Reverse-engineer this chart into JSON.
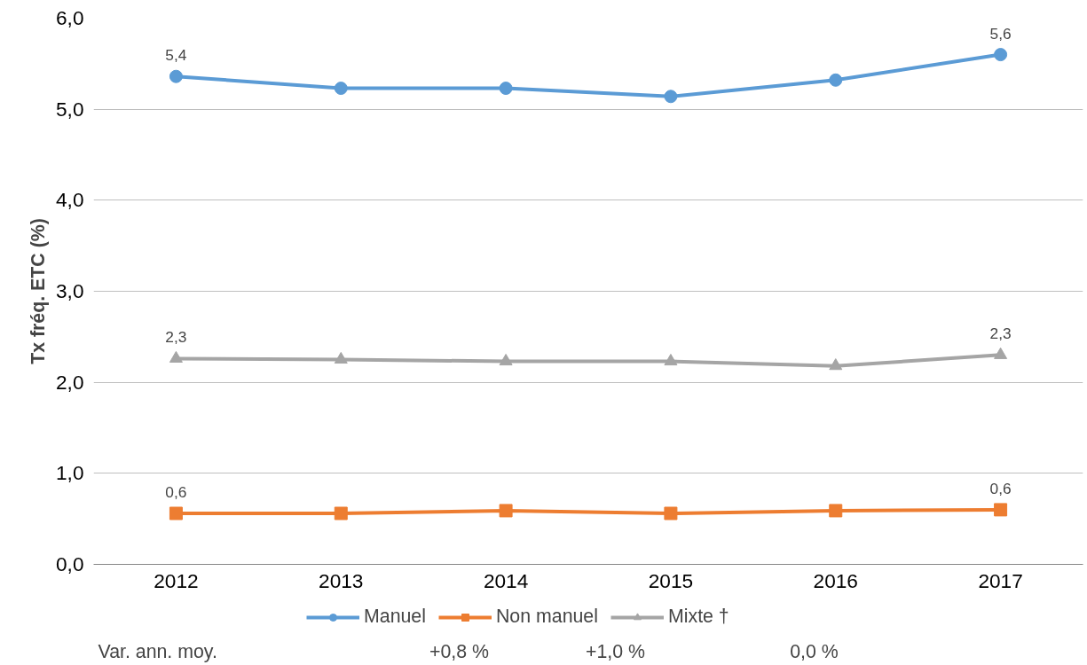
{
  "chart_data": {
    "type": "line",
    "ylabel": "Tx fréq. ETC (%)",
    "categories": [
      "2012",
      "2013",
      "2014",
      "2015",
      "2016",
      "2017"
    ],
    "series": [
      {
        "name": "Manuel",
        "color": "#5b9bd5",
        "marker": "circle",
        "values": [
          5.36,
          5.23,
          5.23,
          5.14,
          5.32,
          5.6
        ],
        "value_labels": [
          "5,4",
          null,
          null,
          null,
          null,
          "5,6"
        ]
      },
      {
        "name": "Non manuel",
        "color": "#ed7d31",
        "marker": "square",
        "values": [
          0.56,
          0.56,
          0.59,
          0.56,
          0.59,
          0.6
        ],
        "value_labels": [
          "0,6",
          null,
          null,
          null,
          null,
          "0,6"
        ]
      },
      {
        "name": "Mixte †",
        "color": "#a5a5a5",
        "marker": "triangle",
        "values": [
          2.26,
          2.25,
          2.23,
          2.23,
          2.18,
          2.3
        ],
        "value_labels": [
          "2,3",
          null,
          null,
          null,
          null,
          "2,3"
        ]
      }
    ],
    "ylim": [
      0,
      6
    ],
    "yticks": [
      {
        "value": 0,
        "label": "0,0"
      },
      {
        "value": 1,
        "label": "1,0"
      },
      {
        "value": 2,
        "label": "2,0"
      },
      {
        "value": 3,
        "label": "3,0"
      },
      {
        "value": 4,
        "label": "4,0"
      },
      {
        "value": 5,
        "label": "5,0"
      },
      {
        "value": 6,
        "label": "6,0"
      }
    ],
    "grid": "y",
    "legend": "bottom",
    "line_style": "solid",
    "annotations": [
      "Var. ann. moy.",
      "+0,8 %",
      "+1,0 %",
      "0,0 %"
    ]
  }
}
